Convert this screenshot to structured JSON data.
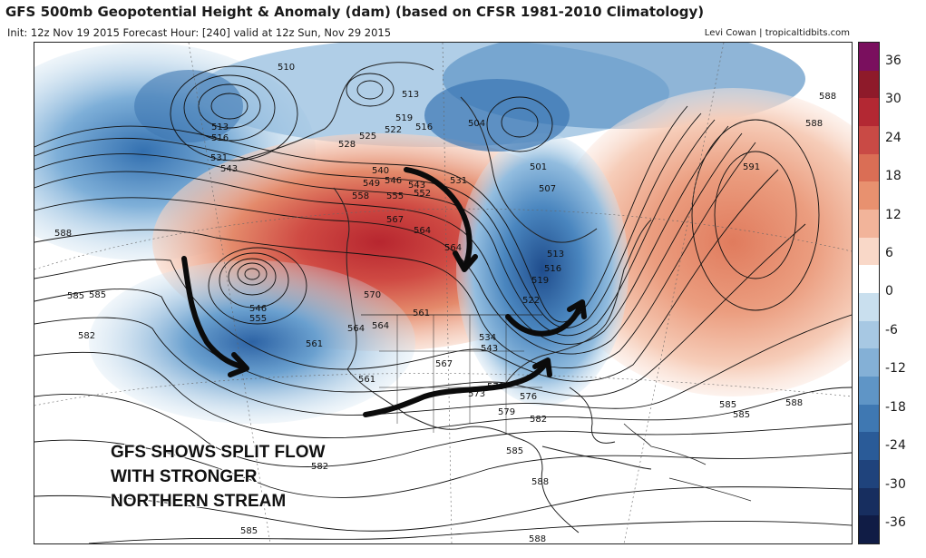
{
  "header": {
    "title": "GFS 500mb Geopotential Height & Anomaly (dam) (based on CFSR 1981-2010 Climatology)",
    "subtitle": "Init: 12z Nov 19 2015   Forecast Hour: [240]   valid at 12z Sun, Nov 29 2015",
    "credit": "Levi Cowan | tropicaltidbits.com"
  },
  "colorbar": {
    "labels": [
      "36",
      "30",
      "24",
      "18",
      "12",
      "6",
      "0",
      "-6",
      "-12",
      "-18",
      "-24",
      "-30",
      "-36"
    ],
    "colors": [
      "#7a0f5e",
      "#8e1a2a",
      "#b32833",
      "#c94a45",
      "#da6e55",
      "#e8916f",
      "#f2b49a",
      "#f9d8c8",
      "#ffffff",
      "#c9dfee",
      "#a7c8e3",
      "#84b0d6",
      "#5f95c6",
      "#3f78b2",
      "#2a5b98",
      "#1f437c",
      "#172e5f",
      "#101c45"
    ]
  },
  "annotation": {
    "line1": "GFS SHOWS SPLIT FLOW",
    "line2": "WITH STRONGER",
    "line3": "NORTHERN STREAM"
  },
  "contour_labels": [
    "510",
    "513",
    "516",
    "531",
    "543",
    "513",
    "519",
    "516",
    "504",
    "522",
    "525",
    "528",
    "540",
    "546",
    "549",
    "543",
    "531",
    "552",
    "555",
    "558",
    "567",
    "564",
    "588",
    "585",
    "582",
    "546",
    "555",
    "561",
    "564",
    "570",
    "561",
    "564",
    "561",
    "567",
    "573",
    "570",
    "576",
    "579",
    "582",
    "585",
    "582",
    "585",
    "588",
    "591",
    "588",
    "585",
    "585",
    "588",
    "588",
    "588",
    "501",
    "507",
    "513",
    "516",
    "519",
    "522",
    "534",
    "543",
    "564",
    "585"
  ]
}
